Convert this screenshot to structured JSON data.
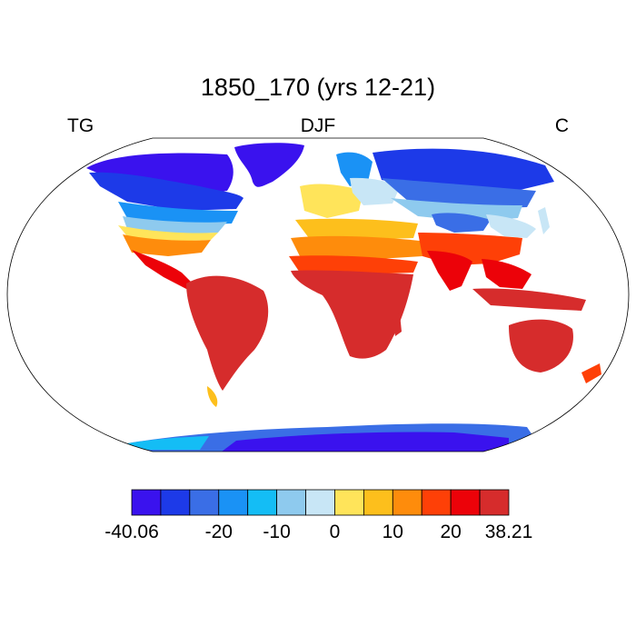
{
  "title": "1850_170 (yrs 12-21)",
  "left_label": "TG",
  "center_label": "DJF",
  "right_label": "C",
  "colorbar": {
    "colors": [
      "#3a12ee",
      "#1d3ae8",
      "#3a6ee6",
      "#1a92f5",
      "#14bdf5",
      "#8ecaee",
      "#c8e6f6",
      "#ffe45a",
      "#fdbf1c",
      "#fe8c0c",
      "#fe4007",
      "#ec0209",
      "#d62c2c"
    ],
    "tick_labels": [
      "-40.06",
      "-20",
      "-10",
      "0",
      "10",
      "20",
      "38.21"
    ],
    "tick_boundary_index": [
      0,
      3,
      5,
      7,
      9,
      11,
      13
    ]
  },
  "map": {
    "projection": "robinson",
    "ocean_color": "#ffffff"
  }
}
